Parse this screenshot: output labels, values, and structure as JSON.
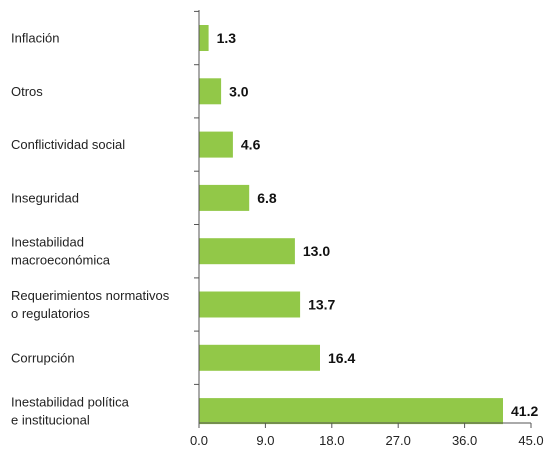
{
  "chart_data": {
    "type": "bar",
    "orientation": "horizontal",
    "categories": [
      [
        "Inflación"
      ],
      [
        "Otros"
      ],
      [
        "Conflictividad social"
      ],
      [
        "Inseguridad"
      ],
      [
        "Inestabilidad",
        "macroeconómica"
      ],
      [
        "Requerimientos normativos",
        "o regulatorios"
      ],
      [
        "Corrupción"
      ],
      [
        "Inestabilidad política",
        "e institucional"
      ]
    ],
    "values": [
      1.3,
      3.0,
      4.6,
      6.8,
      13.0,
      13.7,
      16.4,
      41.2
    ],
    "value_labels": [
      "1.3",
      "3.0",
      "4.6",
      "6.8",
      "13.0",
      "13.7",
      "16.4",
      "41.2"
    ],
    "xticks": [
      "0.0",
      "9.0",
      "18.0",
      "27.0",
      "36.0",
      "45.0"
    ],
    "xlim": [
      0,
      45
    ],
    "bar_color": "#92c848",
    "grid": false,
    "title": "",
    "xlabel": "",
    "ylabel": ""
  }
}
